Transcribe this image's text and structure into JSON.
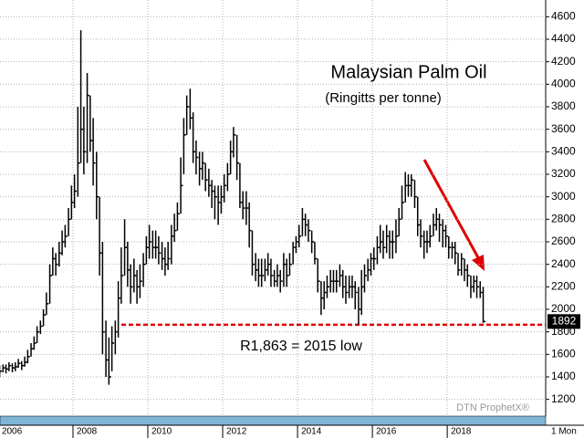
{
  "chart_data": {
    "type": "ohlc",
    "title": "Malaysian Palm Oil",
    "subtitle": "(Ringitts per tonne)",
    "annotation": "R1,863 = 2015 low",
    "watermark": "DTN ProphetX®",
    "period": "1 Mon",
    "support": 1863,
    "color": "#000000",
    "support_color": "#e00000",
    "grid": true,
    "xlim": [
      2006.05,
      2020.63
    ],
    "ylim": [
      1100,
      4700
    ],
    "xticks": [
      2006,
      2008,
      2010,
      2012,
      2014,
      2016,
      2018
    ],
    "yticks": [
      1200,
      1400,
      1600,
      1800,
      2000,
      2200,
      2400,
      2600,
      2800,
      3000,
      3200,
      3400,
      3600,
      3800,
      4000,
      4200,
      4400,
      4600
    ],
    "x": [
      2006.04,
      2006.13,
      2006.21,
      2006.29,
      2006.38,
      2006.46,
      2006.54,
      2006.63,
      2006.71,
      2006.79,
      2006.88,
      2006.96,
      2007.04,
      2007.13,
      2007.21,
      2007.29,
      2007.38,
      2007.46,
      2007.54,
      2007.63,
      2007.71,
      2007.79,
      2007.88,
      2007.96,
      2008.04,
      2008.13,
      2008.21,
      2008.29,
      2008.38,
      2008.46,
      2008.54,
      2008.63,
      2008.71,
      2008.79,
      2008.88,
      2008.96,
      2009.04,
      2009.13,
      2009.21,
      2009.29,
      2009.38,
      2009.46,
      2009.54,
      2009.63,
      2009.71,
      2009.79,
      2009.88,
      2009.96,
      2010.04,
      2010.13,
      2010.21,
      2010.29,
      2010.38,
      2010.46,
      2010.54,
      2010.63,
      2010.71,
      2010.79,
      2010.88,
      2010.96,
      2011.04,
      2011.13,
      2011.21,
      2011.29,
      2011.38,
      2011.46,
      2011.54,
      2011.63,
      2011.71,
      2011.79,
      2011.88,
      2011.96,
      2012.04,
      2012.13,
      2012.21,
      2012.29,
      2012.38,
      2012.46,
      2012.54,
      2012.63,
      2012.71,
      2012.79,
      2012.88,
      2012.96,
      2013.04,
      2013.13,
      2013.21,
      2013.29,
      2013.38,
      2013.46,
      2013.54,
      2013.63,
      2013.71,
      2013.79,
      2013.88,
      2013.96,
      2014.04,
      2014.13,
      2014.21,
      2014.29,
      2014.38,
      2014.46,
      2014.54,
      2014.63,
      2014.71,
      2014.79,
      2014.88,
      2014.96,
      2015.04,
      2015.13,
      2015.21,
      2015.29,
      2015.38,
      2015.46,
      2015.54,
      2015.63,
      2015.71,
      2015.79,
      2015.88,
      2015.96,
      2016.04,
      2016.13,
      2016.21,
      2016.29,
      2016.38,
      2016.46,
      2016.54,
      2016.63,
      2016.71,
      2016.79,
      2016.88,
      2016.96,
      2017.04,
      2017.13,
      2017.21,
      2017.29,
      2017.38,
      2017.46,
      2017.54,
      2017.63,
      2017.71,
      2017.79,
      2017.88,
      2017.96,
      2018.04,
      2018.13,
      2018.21,
      2018.29,
      2018.38,
      2018.46,
      2018.54,
      2018.63,
      2018.71,
      2018.79,
      2018.88,
      2018.96
    ],
    "high": [
      1500,
      1510,
      1510,
      1530,
      1520,
      1530,
      1560,
      1540,
      1580,
      1640,
      1700,
      1760,
      1850,
      1900,
      2000,
      2150,
      2400,
      2550,
      2500,
      2600,
      2700,
      2750,
      2900,
      3100,
      3200,
      3800,
      4480,
      3800,
      4100,
      3900,
      3700,
      3400,
      3000,
      2600,
      1900,
      1750,
      1850,
      1900,
      2250,
      2550,
      2800,
      2600,
      2400,
      2450,
      2350,
      2400,
      2500,
      2650,
      2750,
      2700,
      2700,
      2650,
      2600,
      2550,
      2600,
      2750,
      2850,
      2950,
      3350,
      3700,
      3900,
      3960,
      3750,
      3500,
      3400,
      3400,
      3300,
      3250,
      3150,
      3100,
      3100,
      3100,
      3200,
      3300,
      3500,
      3620,
      3550,
      3300,
      3050,
      3050,
      2950,
      2700,
      2500,
      2450,
      2450,
      2450,
      2500,
      2450,
      2350,
      2400,
      2350,
      2500,
      2450,
      2500,
      2600,
      2650,
      2750,
      2900,
      2850,
      2800,
      2700,
      2600,
      2450,
      2250,
      2250,
      2300,
      2350,
      2350,
      2350,
      2400,
      2350,
      2300,
      2300,
      2300,
      2250,
      2200,
      2350,
      2400,
      2450,
      2500,
      2550,
      2650,
      2750,
      2700,
      2750,
      2700,
      2700,
      2800,
      2900,
      3100,
      3220,
      3200,
      3200,
      3150,
      3000,
      2800,
      2700,
      2700,
      2750,
      2850,
      2900,
      2850,
      2800,
      2750,
      2650,
      2600,
      2600,
      2500,
      2500,
      2450,
      2400,
      2300,
      2300,
      2300,
      2250,
      2200
    ],
    "low": [
      1400,
      1440,
      1430,
      1450,
      1440,
      1450,
      1480,
      1460,
      1490,
      1520,
      1580,
      1640,
      1700,
      1780,
      1850,
      1950,
      2050,
      2300,
      2300,
      2380,
      2480,
      2550,
      2650,
      2800,
      2900,
      3000,
      3300,
      3200,
      3300,
      3400,
      3100,
      2800,
      2300,
      1600,
      1400,
      1330,
      1450,
      1600,
      1750,
      2050,
      2300,
      2200,
      2050,
      2150,
      2050,
      2100,
      2200,
      2400,
      2450,
      2450,
      2450,
      2400,
      2350,
      2300,
      2350,
      2400,
      2600,
      2700,
      2850,
      3200,
      3550,
      3600,
      3300,
      3200,
      3100,
      3150,
      3050,
      3000,
      2900,
      2800,
      2750,
      2850,
      2950,
      3050,
      3200,
      3350,
      3150,
      2900,
      2800,
      2750,
      2550,
      2300,
      2250,
      2200,
      2200,
      2250,
      2300,
      2200,
      2200,
      2200,
      2150,
      2200,
      2200,
      2300,
      2400,
      2500,
      2550,
      2650,
      2650,
      2600,
      2500,
      2400,
      2150,
      1950,
      2000,
      2100,
      2150,
      2150,
      2150,
      2200,
      2100,
      2050,
      2100,
      2100,
      2000,
      1863,
      1950,
      2150,
      2250,
      2300,
      2350,
      2400,
      2500,
      2450,
      2500,
      2450,
      2450,
      2500,
      2650,
      2800,
      2950,
      3000,
      3000,
      2900,
      2650,
      2550,
      2450,
      2500,
      2550,
      2650,
      2700,
      2600,
      2550,
      2550,
      2450,
      2450,
      2400,
      2300,
      2300,
      2250,
      2200,
      2100,
      2150,
      2100,
      2100,
      1880
    ],
    "close": [
      1450,
      1480,
      1470,
      1500,
      1480,
      1490,
      1520,
      1500,
      1530,
      1580,
      1650,
      1700,
      1800,
      1850,
      1950,
      2050,
      2300,
      2450,
      2400,
      2500,
      2600,
      2650,
      2800,
      2950,
      3050,
      3300,
      3600,
      3400,
      3900,
      3500,
      3300,
      3000,
      2500,
      1800,
      1550,
      1400,
      1700,
      1800,
      2100,
      2300,
      2550,
      2350,
      2200,
      2300,
      2200,
      2250,
      2400,
      2550,
      2600,
      2550,
      2550,
      2500,
      2450,
      2400,
      2450,
      2650,
      2700,
      2850,
      3100,
      3550,
      3800,
      3700,
      3400,
      3350,
      3250,
      3300,
      3150,
      3100,
      3050,
      3000,
      2950,
      3000,
      3100,
      3200,
      3400,
      3550,
      3300,
      2950,
      2900,
      2900,
      2700,
      2400,
      2350,
      2300,
      2300,
      2350,
      2400,
      2300,
      2250,
      2300,
      2250,
      2400,
      2300,
      2400,
      2550,
      2600,
      2650,
      2800,
      2750,
      2700,
      2600,
      2450,
      2250,
      2100,
      2150,
      2200,
      2250,
      2250,
      2250,
      2300,
      2200,
      2150,
      2200,
      2200,
      2150,
      2000,
      2200,
      2300,
      2350,
      2450,
      2450,
      2550,
      2600,
      2550,
      2650,
      2600,
      2600,
      2650,
      2800,
      2950,
      3100,
      3100,
      3150,
      3000,
      2750,
      2650,
      2600,
      2600,
      2650,
      2750,
      2800,
      2750,
      2700,
      2650,
      2550,
      2550,
      2500,
      2350,
      2450,
      2350,
      2300,
      2200,
      2250,
      2200,
      2150,
      1892
    ]
  }
}
